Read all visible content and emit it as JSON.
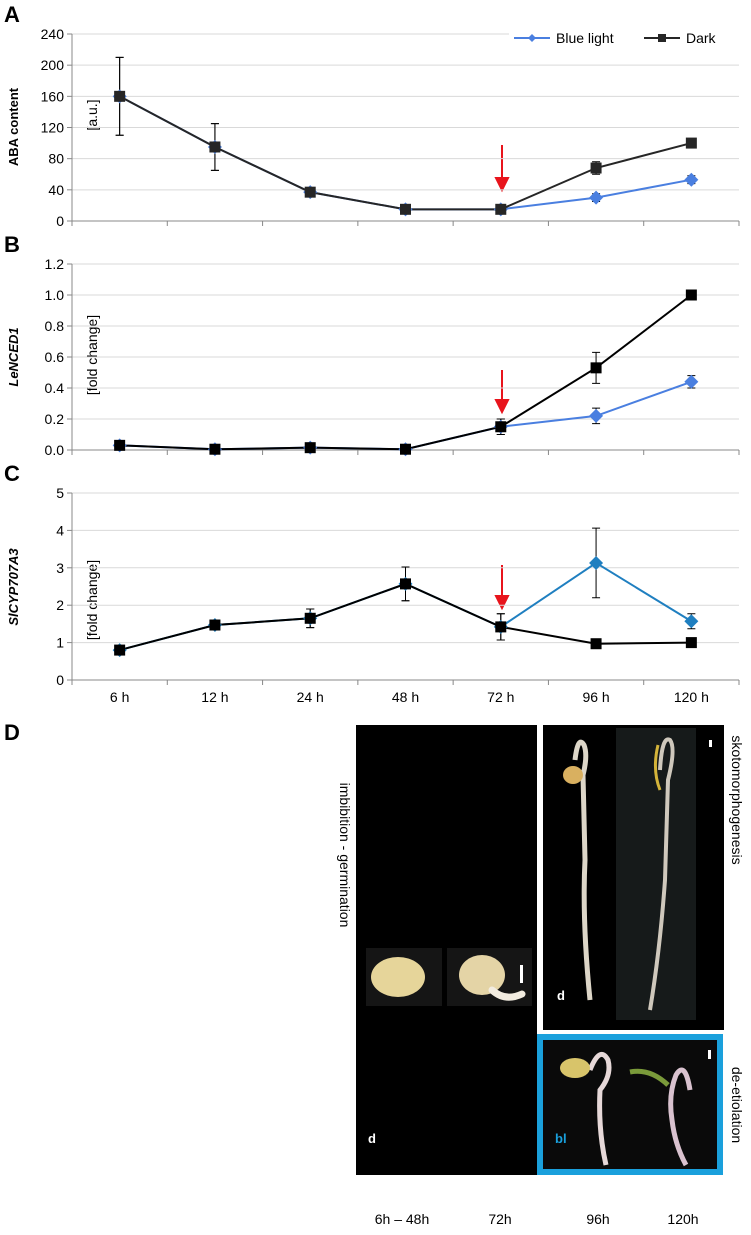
{
  "chart_data": [
    {
      "type": "line",
      "panel": "A",
      "ylabel": "ABA content",
      "unit_label": "[a.u.]",
      "ylim": [
        0,
        240
      ],
      "yticks": [
        0,
        40,
        80,
        120,
        160,
        200,
        240
      ],
      "grid": true,
      "legend": "top-right",
      "series": [
        {
          "name": "Blue light",
          "color": "#4a7fe0",
          "marker": "diamond",
          "values": [
            160,
            95,
            37,
            15,
            15,
            30,
            53
          ],
          "errors": [
            50,
            30,
            5,
            3,
            3,
            5,
            5
          ]
        },
        {
          "name": "Dark",
          "color": "#262626",
          "marker": "square",
          "values": [
            160,
            95,
            37,
            15,
            15,
            68,
            100
          ],
          "errors": [
            50,
            30,
            5,
            3,
            3,
            8,
            3
          ]
        }
      ]
    },
    {
      "type": "line",
      "panel": "B",
      "ylabel": "LeNCED1",
      "unit_label": "[fold change]",
      "ylim": [
        0,
        1.2
      ],
      "yticks": [
        {
          "value": 0,
          "label": "0.0"
        },
        0.2,
        0.4,
        0.6,
        0.8,
        {
          "value": 1,
          "label": "1.0"
        },
        1.2
      ],
      "grid": true,
      "series": [
        {
          "color": "#4a7fe0",
          "marker": "diamond",
          "values": [
            0.03,
            0.005,
            0.015,
            0.005,
            0.15,
            0.22,
            0.44
          ],
          "errors": [
            0.02,
            0.01,
            0.02,
            0.01,
            0.05,
            0.05,
            0.04
          ]
        },
        {
          "color": "#000000",
          "marker": "square",
          "values": [
            0.03,
            0.005,
            0.015,
            0.005,
            0.15,
            0.53,
            1.0
          ],
          "errors": [
            0.02,
            0.01,
            0.02,
            0.01,
            0.05,
            0.1,
            0.01
          ]
        }
      ]
    },
    {
      "type": "line",
      "panel": "C",
      "ylabel": "SlCYP707A3",
      "unit_label": "[fold change]",
      "categories": [
        "6 h",
        "12 h",
        "24 h",
        "48 h",
        "72 h",
        "96 h",
        "120 h"
      ],
      "ylim": [
        0,
        5
      ],
      "yticks": [
        0,
        1,
        2,
        3,
        4,
        5
      ],
      "grid": true,
      "series": [
        {
          "color": "#1f7fc0",
          "marker": "diamond",
          "values": [
            0.8,
            1.47,
            1.65,
            2.57,
            1.42,
            3.13,
            1.57
          ],
          "errors": [
            0.1,
            0.1,
            0.25,
            0.45,
            0.35,
            0.93,
            0.2
          ]
        },
        {
          "color": "#000000",
          "marker": "square",
          "values": [
            0.8,
            1.47,
            1.65,
            2.57,
            1.42,
            0.97,
            1.0
          ],
          "errors": [
            0.1,
            0.1,
            0.25,
            0.45,
            0.35,
            0.05,
            0.05
          ]
        }
      ]
    }
  ],
  "panel_d": {
    "panel": "D",
    "left_label": "imbibition - germination",
    "right_top_label": "skotomorphogenesis",
    "right_bottom_label": "de-etiolation",
    "left_condition": "d",
    "top_condition": "d",
    "bottom_condition": "bl",
    "time_labels": [
      "6h – 48h",
      "72h",
      "96h",
      "120h"
    ]
  }
}
